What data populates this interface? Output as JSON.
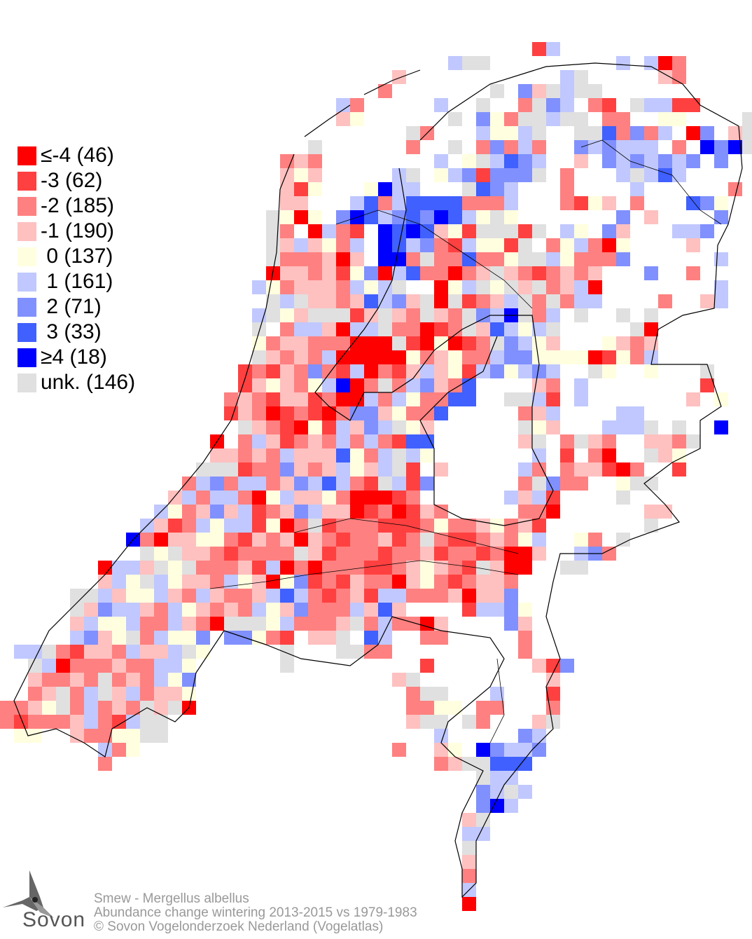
{
  "legend": {
    "items": [
      {
        "code": "a",
        "label": "≤-4 (46)",
        "color": "#ff0000"
      },
      {
        "code": "b",
        "label": "-3 (62)",
        "color": "#ff4040"
      },
      {
        "code": "c",
        "label": "-2 (185)",
        "color": "#ff8080"
      },
      {
        "code": "d",
        "label": "-1 (190)",
        "color": "#ffc0c0"
      },
      {
        "code": "e",
        "label": " 0 (137)",
        "color": "#ffffe0"
      },
      {
        "code": "f",
        "label": " 1 (161)",
        "color": "#c0c8ff"
      },
      {
        "code": "g",
        "label": " 2 (71)",
        "color": "#8090ff"
      },
      {
        "code": "h",
        "label": " 3 (33)",
        "color": "#4060ff"
      },
      {
        "code": "i",
        "label": "≥4 (18)",
        "color": "#0000ff"
      },
      {
        "code": "u",
        "label": "unk. (146)",
        "color": "#e0e0e0"
      }
    ]
  },
  "footer": {
    "species": "Smew - Mergellus albellus",
    "subtitle": "Abundance change wintering  2013-2015 vs 1979-1983",
    "copyright": "© Sovon Vogelonderzoek Nederland (Vogelatlas)"
  },
  "logo": {
    "text": "Sovon"
  },
  "map": {
    "cell_rows": [
      "38b 39f",
      "32f 33u 34u 44f 46f 47a 48c",
      "28d 40f 41u 47d 48c",
      "27c 35u 37g 38d 39u 40f 41u 42u",
      "24f 25c 31f 34u 37c 38u 39g 40f 42c 43b 45u 46f 47f 48b 49b",
      "24d 25e 32u 34g 35e 36c 37u 38u 39f 40u 41u 43c 44c 47e 48e 53u",
      "29u 30c 34f 35e 36e 37f 38u 41u 42u 43h 44c 45g 46c 47f 49a 50g 52d 53u",
      "22u 29c 32u 34c 35g 36c 37f 38c 41g 42f 43g 44f 45f 46f 48c 50i 51g 52i 53u",
      "20c 21d 22c 31f 33e 34u 35f 36h 37g 38f 41d 43g 44f 45g 46f 47g 48f 49g 51g",
      "20d 21e 22d 28f 29u 31e 32f 33g 34b 35g 36g 37g 38u 40c 44f 45u 46f 47h 48f",
      "20d 21b 22e 26e 27i 28f 29f 33u 34h 35g 36f 40c 45f 52c",
      "20d 21d 25f 26h 27c 28f 29h 30h 31h 32h 33c 34c 35c 36f 40c 41b 42e 43d 45c 49h 50g 51e",
      "19u 20e 21a 22e 24g 25i 26h 27f 28g 29h 30g 31i 32h 33f 34e 35u 36e 44g 46d 51g",
      "19u 20c 22a 23f 24c 25b 27i 28h 29i 30h 31d 32e 33b 34u 35u 36u 37b 38u 40f 41e 43g 44d 48f 49f 50g",
      "19u 20d 21f 22d 23e 24c 25f 27i 28h 29f 30g 31c 32b 33f 34e 35e 36b 37u 39c 40e 41f 42c 43a 44e 49d",
      "19u 20c 21c 22c 23d 24a 25d 27i 28i 29c 30u 31c 32c 33h 34c 35c 36e 37u 38u 39f 40e 41c 42c 43c 44g 51f",
      "19a 20d 21d 22c 23d 24b 25e 26g 27a 28f 29h 30c 31c 32a 33c 34d 35u 36d 37c 38b 39c 40d 41c 42d 46g 49c",
      "18f 19e 20c 21d 22d 23d 24c 25f 26e 27f 28u 31a 32e 33f 34u 35e 36u 37d 38u 39c 40d 41f 42a 51f",
      "19u 20f 21u 22d 23d 24c 25d 26h 27f 28g 29d 30u 31a 32u 33b 34c 35d 36f 37u 38c 39u 40c 41f 42f 47c 50d 51f",
      "18f 19u 20e 21d 22u 23u 24u 25b 26d 27u 28d 29c 30u 31d 32c 33u 34g 35f 36i 37u 38c 39f 41u 44u 46u",
      "18u 20c 21f 22f 23d 24a 25f 26f 27u 28c 29c 30a 31b 32c 33u 34d 35h 36f 37e 38f 39u 45u 46a",
      "18e 19c 20d 21d 22c 23c 24c 25a 26a 27a 28u 29b 30a 31e 32a 33b 34c 35u 36g 37f 38e 39d 43e 44d 45c 46d",
      "18u 19d 20c 21d 22c 23f 24a 25a 26a 27a 28a 29e 30c 31d 32e 33c 34c 35f 36g 37g 38e 39e 40e 41e 42a 43b 44e 45c 46f",
      "17b 18c 19b 20d 21c 22g 23c 24b 25f 26a 27c 28b 29d 30f 31d 32e 33b 34f 35g 36e 37f 38g 39f 42u 43e 46e 50u",
      "17b 18d 19e 20d 21c 22e 23f 24i 25a 26c 27u 28c 29f 30g 31d 32c 33h 38d 39c 41f 50b",
      "16c 17d 18c 19b 20d 21d 22b 23c 24a 25a 26f 27c 28f 29e 30c 31c 32h 33h 36u 37u 38f 39b 41f 49d 51e",
      "16b 17d 18c 19a 20b 21c 22b 23a 24c 25g 26g 27d 28e 29c 30c 31h 37c 38d 39f 44f 45f",
      "17u 18d 19c 20b 21a 22e 23b 24f 25d 26g 27f 28u 29e 30d 37u 38e 39d 43f 44f 45f 46u 48u 51i",
      "15a 17c 18f 19d 20b 21c 22d 23c 24f 25c 26f 27c 28b 29h 30h 37d 38u 40c 41u 42d 43c 46d 47d 48c 49u",
      "15d 16d 17c 18d 19c 20f 21d 22d 23d 24h 25e 26c 27f 28u 29f 30e 38f 40b 42c 43a 46u 47d 48e",
      "14u 15u 16u 17b 18c 19c 20g 21d 22c 23d 24f 25e 26d 27f 28u 29b 31d 37f 38c 40c 41d 42d 43b 44a 45c 48b",
      "13c 14f 15g 16c 17f 18f 19c 20d 21g 22f 23h 24f 25c 26b 27u 28f 29b 30g 37c 38u 39g 40c 41c 44e 45u 46u",
      "12d 13f 14c 15f 16f 17c 18a 19e 20f 21d 22d 23e 24c 25a 26a 27a 28b 29c 36f 37d 38f 39b 44u",
      "11f 12e 13c 14d 15g 16d 17f 18b 19c 20d 21g 22f 23d 24d 25a 26b 27c 28a 29b 30d 31c 37c 38c 39a 46d 47d",
      "10f 11d 12b 13c 14f 15e 16f 17f 18b 19e 20a 21c 22u 23b 24c 25c 26c 27b 28b 29b 30c 31e 32c 33c 34d 35e 36c 37d 38b 46u",
      "9i 10c 11a 12d 13d 14e 15e 16c 17b 18d 19c 20d 21a 22d 23c 24b 25c 26c 27d 28b 29c 30u 31c 32b 33b 34c 35d 36c 37e 38f 41e 42c 44u",
      "10u 11e 12u 13d 14d 15c 16b 17c 18c 19c 20c 21u 22d 23b 24c 25c 26c 27b 28c 29c 30d 31b 32c 33c 34b 35c 36a 37a 38d 41f 42g 43c",
      "7a 8f 9f 10d 11u 12e 13u 14c 15c 16c 17d 18b 19f 20a 21c 22a 23c 24c 25c 26b 27b 28c 29d 30e 31d 32c 33b 34u 35d 36a 37a 40u 41u",
      "7d 8f 9e 10u 11f 12e 13d 14d 15c 16f 17e 18d 19a 20e 21g 22b 23c 24b 25d 26c 27c 28a 29d 30e 31c 32b 33c 34d 35d 36c",
      "5u 6u 7f 8d 9e 10e 11f 12d 13c 14f 15d 16c 17c 18d 19f 20h 21f 22c 23b 24c 25d 26b 27f 28f 29c 30c 31c 32d 33a 34d 35d 36g",
      "5u 6d 7g 8f 9f 10d 11c 12f 13e 14d 15c 16d 17c 18f 19e 20d 21g 22c 23c 24c 25f 26d 27h 28d 33b 34f 35f 36g 37e",
      "5d 6f 7e 8e 9f 10c 11c 12f 13d 14c 15a 16u 17u 18u 19e 20f 21c 22c 23c 24d 25u 26c 27f 28c 29c 30a 31d 36g 37d",
      "5f 6g 7d 8e 9u 10c 11f 12e 13e 14g 16g 17g 18e 19c 20b 22d 23d 24u 26h 27f 30c 31c 37c",
      "1f 2f 3u 4c 5b 6d 7d 8c 9f 10d 11d 12f 13u 14e 20u 24u 25u 26c 27c 37c",
      "2u 3f 4a 5c 6c 7c 8d 9c 10c 11f 12f 13e 20u 30b 38d 39b 40g",
      "2d 3c 4c 5d 6c 7u 8c 9d 10c 11f 12e 13g 28d 29u 39d",
      "2c 3d 4u 5c 6f 7u 8d 9f 10c 11d 12d 13e 29c 30u 31u 35f 39b",
      "0c 1c 2d 3e 4u 5c 6f 7c 8d 9c 10u 11d 12u 13a 29c 30c 31e 32e 34c 35c 39c",
      "0c 1b 2c 3c 4c 5d 6f 7c 8b 9f 10u 11u 29d 30u 31u 33u 34c 38d 39u",
      "1e 2e 5d 6c 7c 8e 9e 10u 11u 31f 37g 38f",
      "7f 8c 9e 28c 31d 32e 34i 35g 36f 37f 38g",
      "7c 31c 32d 33u 34u 35h 36h 37h",
      "34u 35f 36f",
      "34g 35f 36u 37f",
      "34g 35i 36f",
      "33d 34u",
      "33f 34f",
      "33u",
      "33d",
      "33c",
      "33f",
      "33a"
    ]
  }
}
